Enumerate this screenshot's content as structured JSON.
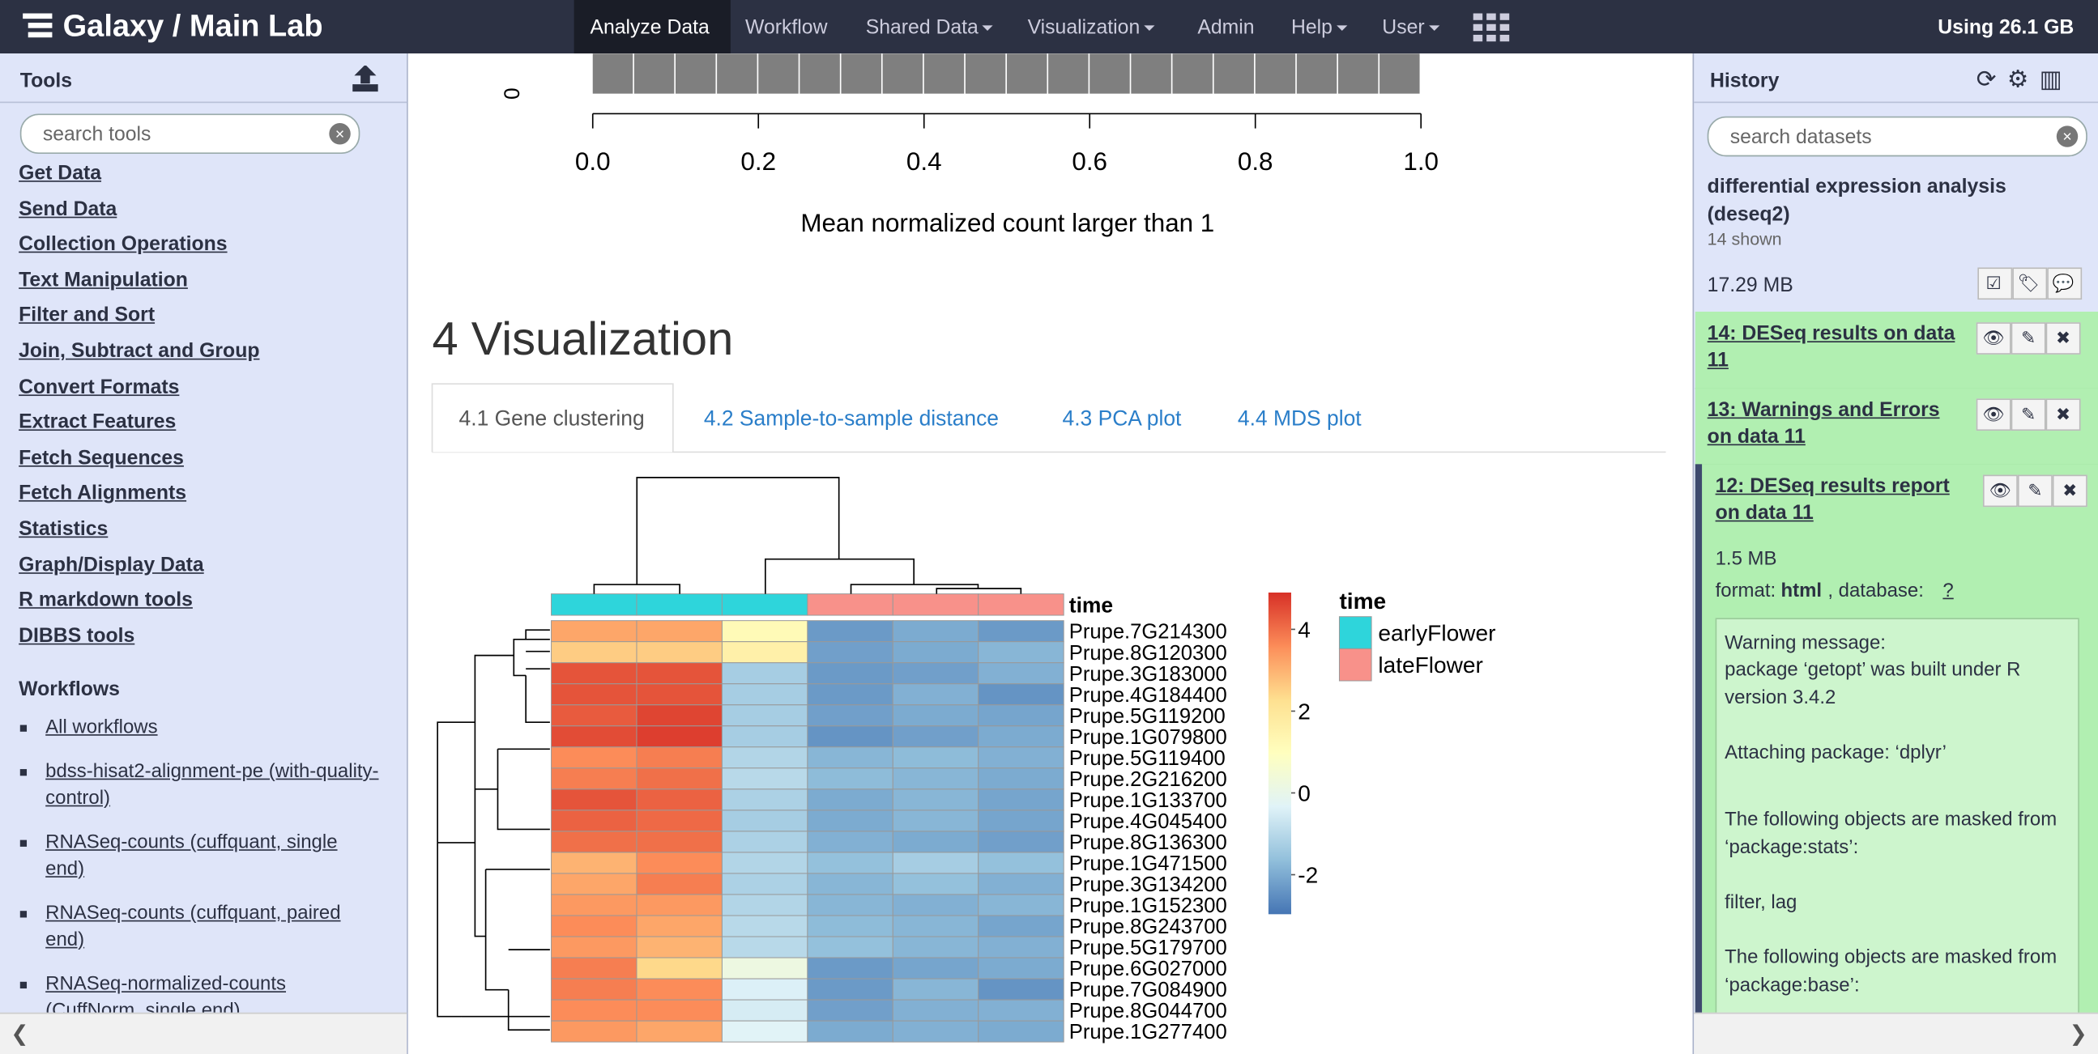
{
  "masthead": {
    "brand": "Galaxy / Main Lab",
    "nav": [
      "Analyze Data",
      "Workflow",
      "Shared Data",
      "Visualization",
      "Admin",
      "Help",
      "User"
    ],
    "quota": "Using 26.1 GB"
  },
  "tools": {
    "title": "Tools",
    "search": "search tools",
    "sections": [
      "Get Data",
      "Send Data",
      "Collection Operations",
      "Text Manipulation",
      "Filter and Sort",
      "Join, Subtract and Group",
      "Convert Formats",
      "Extract Features",
      "Fetch Sequences",
      "Fetch Alignments",
      "Statistics",
      "Graph/Display Data",
      "R markdown tools",
      "DIBBS tools"
    ],
    "workflows_title": "Workflows",
    "workflows": [
      "All workflows",
      "bdss-hisat2-alignment-pe (with-quality-control)",
      "RNASeq-counts (cuffquant, single end)",
      "RNASeq-counts (cuffquant, paired end)",
      "RNASeq-normalized-counts (CuffNorm, single end)"
    ]
  },
  "center": {
    "histogram": {
      "xlim": [
        0,
        1
      ],
      "yticks": [
        0
      ],
      "xticks": [
        {
          "value": 0,
          "label": "0.0"
        },
        {
          "value": 0.2,
          "label": "0.2"
        },
        {
          "value": 0.4,
          "label": "0.4"
        },
        {
          "value": 0.6,
          "label": "0.6"
        },
        {
          "value": 0.8,
          "label": "0.8"
        },
        {
          "value": 1,
          "label": "1.0"
        }
      ],
      "xlabel": "Mean normalized count larger than 1"
    },
    "heading": "4 Visualization",
    "tabs": [
      "4.1 Gene clustering",
      "4.2 Sample-to-sample distance",
      "4.3 PCA plot",
      "4.4 MDS plot"
    ],
    "heatmap": {
      "annotation_title": "time",
      "legend_title": "time",
      "groups": [
        {
          "name": "earlyFlower",
          "color": "#2ed5db"
        },
        {
          "name": "lateFlower",
          "color": "#f8918a"
        }
      ],
      "column_colors": [
        "#2ed5db",
        "#2ed5db",
        "#2ed5db",
        "#f8918a",
        "#f8918a",
        "#f8918a"
      ],
      "rows": [
        "Prupe.7G214300",
        "Prupe.8G120300",
        "Prupe.3G183000",
        "Prupe.4G184400",
        "Prupe.5G119200",
        "Prupe.1G079800",
        "Prupe.5G119400",
        "Prupe.2G216200",
        "Prupe.1G133700",
        "Prupe.4G045400",
        "Prupe.8G136300",
        "Prupe.1G471500",
        "Prupe.3G134200",
        "Prupe.1G152300",
        "Prupe.8G243700",
        "Prupe.5G179700",
        "Prupe.6G027000",
        "Prupe.7G084900",
        "Prupe.8G044700",
        "Prupe.1G277400"
      ],
      "values": [
        [
          3.2,
          3.2,
          1.2,
          -2.3,
          -2.0,
          -2.3
        ],
        [
          2.6,
          2.6,
          1.6,
          -2.2,
          -2.0,
          -1.8
        ],
        [
          4.4,
          4.4,
          -1.3,
          -2.3,
          -2.2,
          -1.9
        ],
        [
          4.4,
          4.4,
          -1.3,
          -2.3,
          -1.9,
          -2.4
        ],
        [
          4.3,
          4.6,
          -1.3,
          -2.2,
          -2.0,
          -2.1
        ],
        [
          4.5,
          4.7,
          -1.3,
          -2.4,
          -2.2,
          -2.0
        ],
        [
          3.6,
          3.8,
          -1.1,
          -1.8,
          -1.7,
          -1.9
        ],
        [
          3.8,
          4.0,
          -1.0,
          -1.7,
          -1.8,
          -2.0
        ],
        [
          4.4,
          4.2,
          -1.2,
          -2.0,
          -1.8,
          -2.1
        ],
        [
          4.2,
          4.1,
          -1.3,
          -2.0,
          -1.8,
          -2.1
        ],
        [
          4.0,
          4.0,
          -1.2,
          -1.9,
          -2.0,
          -2.2
        ],
        [
          3.0,
          3.6,
          -1.1,
          -1.6,
          -1.3,
          -1.6
        ],
        [
          3.2,
          3.8,
          -1.2,
          -1.8,
          -1.6,
          -1.9
        ],
        [
          3.4,
          3.4,
          -1.1,
          -1.8,
          -1.9,
          -1.8
        ],
        [
          3.6,
          3.2,
          -1.0,
          -1.7,
          -1.8,
          -2.1
        ],
        [
          3.4,
          3.0,
          -1.0,
          -1.6,
          -1.8,
          -1.9
        ],
        [
          3.8,
          2.4,
          0.2,
          -2.3,
          -2.1,
          -2.0
        ],
        [
          3.8,
          3.6,
          -0.4,
          -2.3,
          -1.8,
          -2.4
        ],
        [
          3.6,
          3.6,
          -0.5,
          -2.2,
          -1.9,
          -1.9
        ],
        [
          3.4,
          3.2,
          -0.3,
          -2.0,
          -1.9,
          -2.0
        ]
      ],
      "scale_lim": [
        -2.95,
        4.9
      ],
      "scale_ticks": [
        4,
        2,
        0,
        -2
      ],
      "colormap": [
        "#4575b4",
        "#91bfdb",
        "#e0f3f8",
        "#ffffbf",
        "#fee090",
        "#fc8d59",
        "#d73027"
      ]
    }
  },
  "history": {
    "title": "History",
    "search": "search datasets",
    "name": "differential expression analysis (deseq2)",
    "shown": "14 shown",
    "size": "17.29 MB",
    "items": [
      {
        "title": "14: DESeq results on data 11"
      },
      {
        "title": "13: Warnings and Errors on data 11"
      },
      {
        "title": "12: DESeq results report on data 11",
        "size": "1.5 MB",
        "format_label": "format: ",
        "format": "html",
        "database_label": ", database: ",
        "database": "?",
        "info": [
          "Warning message:",
          "package ‘getopt’ was built under R version 3.4.2",
          "Attaching package: ‘dplyr’",
          "The following objects are masked from ‘package:stats’:",
          "filter, lag",
          "The following objects are masked from ‘package:base’:"
        ]
      }
    ]
  }
}
